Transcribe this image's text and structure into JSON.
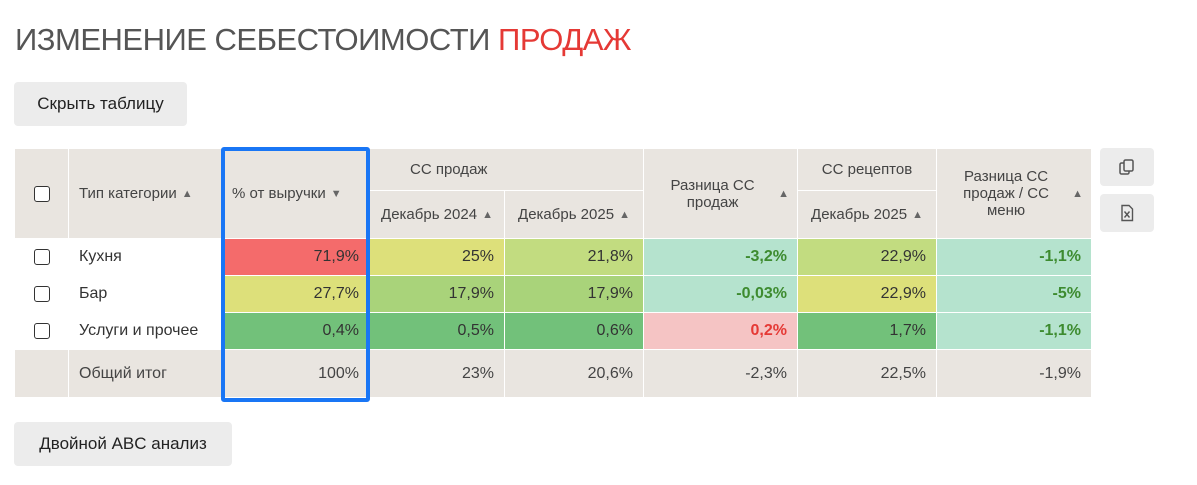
{
  "title": {
    "part1": "ИЗМЕНЕНИЕ СЕБЕСТОИМОСТИ ",
    "part2": "ПРОДАЖ"
  },
  "buttons": {
    "hide_table": "Скрыть таблицу",
    "abc": "Двойной ABC анализ"
  },
  "table": {
    "headers": {
      "category_type": "Тип категории",
      "pct_revenue": "% от выручки",
      "cc_sales": "СС продаж",
      "dec2024": "Декабрь 2024",
      "dec2025": "Декабрь 2025",
      "diff_cc_sales": "Разница СС продаж",
      "cc_recipes": "СС рецептов",
      "dec2025_recipes": "Декабрь 2025",
      "diff_cc_menu": "Разница СС продаж / СС меню"
    },
    "rows": [
      {
        "name": "Кухня",
        "pct": "71,9%",
        "dec2024": "25%",
        "dec2025": "21,8%",
        "diff": "-3,2%",
        "recipes": "22,9%",
        "diff_menu": "-1,1%"
      },
      {
        "name": "Бар",
        "pct": "27,7%",
        "dec2024": "17,9%",
        "dec2025": "17,9%",
        "diff": "-0,03%",
        "recipes": "22,9%",
        "diff_menu": "-5%"
      },
      {
        "name": "Услуги и прочее",
        "pct": "0,4%",
        "dec2024": "0,5%",
        "dec2025": "0,6%",
        "diff": "0,2%",
        "recipes": "1,7%",
        "diff_menu": "-1,1%"
      }
    ],
    "total": {
      "name": "Общий итог",
      "pct": "100%",
      "dec2024": "23%",
      "dec2025": "20,6%",
      "diff": "-2,3%",
      "recipes": "22,5%",
      "diff_menu": "-1,9%"
    }
  },
  "colors": {
    "red_cell": "#f46b6b",
    "yellow_cell": "#dde07a",
    "green_light": "#c2dc80",
    "green_mid": "#a9d37a",
    "green_strong": "#72c17a",
    "mint": "#b5e3ce",
    "pink": "#f5c4c4",
    "highlight": "#1976f5"
  },
  "icons": {
    "sort": "sort-icon",
    "sort_desc": "sort-desc-icon",
    "copy": "copy-icon",
    "excel": "excel-icon"
  }
}
